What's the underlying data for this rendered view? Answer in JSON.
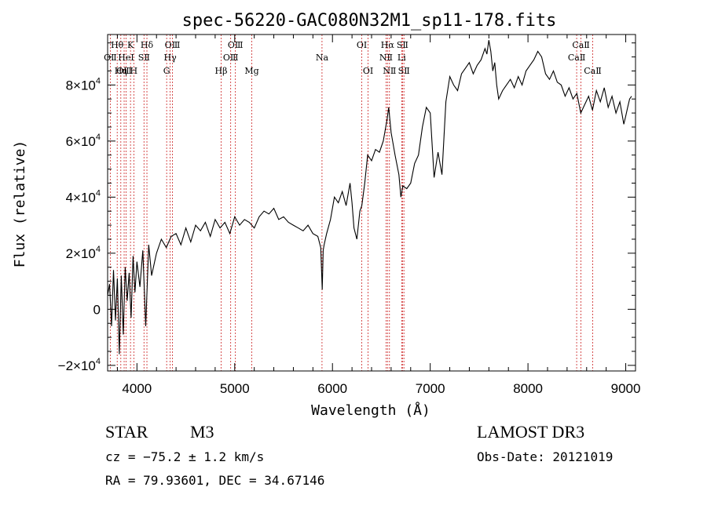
{
  "chart_data": {
    "type": "line",
    "title": "spec-56220-GAC080N32M1_sp11-178.fits",
    "xlabel": "Wavelength (Å)",
    "ylabel": "Flux (relative)",
    "xlim": [
      3700,
      9100
    ],
    "ylim": [
      -22000,
      98000
    ],
    "x_ticks": [
      {
        "value": 4000,
        "label": "4000"
      },
      {
        "value": 5000,
        "label": "5000"
      },
      {
        "value": 6000,
        "label": "6000"
      },
      {
        "value": 7000,
        "label": "7000"
      },
      {
        "value": 8000,
        "label": "8000"
      },
      {
        "value": 9000,
        "label": "9000"
      }
    ],
    "y_ticks": [
      {
        "value": -20000,
        "mant": "−2×10",
        "exp": "4"
      },
      {
        "value": 0,
        "mant": "0",
        "exp": ""
      },
      {
        "value": 20000,
        "mant": "2×10",
        "exp": "4"
      },
      {
        "value": 40000,
        "mant": "4×10",
        "exp": "4"
      },
      {
        "value": 60000,
        "mant": "6×10",
        "exp": "4"
      },
      {
        "value": 80000,
        "mant": "8×10",
        "exp": "4"
      }
    ],
    "series": [
      {
        "name": "flux",
        "x": [
          3700,
          3720,
          3740,
          3760,
          3780,
          3800,
          3820,
          3840,
          3860,
          3880,
          3900,
          3920,
          3940,
          3960,
          3980,
          4000,
          4030,
          4060,
          4090,
          4120,
          4150,
          4200,
          4250,
          4300,
          4350,
          4400,
          4450,
          4500,
          4550,
          4600,
          4650,
          4700,
          4750,
          4800,
          4850,
          4900,
          4950,
          5000,
          5050,
          5100,
          5150,
          5200,
          5250,
          5300,
          5350,
          5400,
          5450,
          5500,
          5550,
          5600,
          5650,
          5700,
          5750,
          5800,
          5850,
          5880,
          5895,
          5905,
          5915,
          5940,
          5980,
          6020,
          6060,
          6100,
          6140,
          6180,
          6200,
          6220,
          6250,
          6280,
          6300,
          6330,
          6360,
          6400,
          6440,
          6480,
          6520,
          6560,
          6575,
          6600,
          6640,
          6680,
          6700,
          6720,
          6760,
          6800,
          6840,
          6880,
          6920,
          6960,
          7000,
          7040,
          7080,
          7120,
          7160,
          7200,
          7240,
          7280,
          7320,
          7360,
          7400,
          7440,
          7480,
          7520,
          7560,
          7580,
          7600,
          7620,
          7640,
          7660,
          7680,
          7700,
          7740,
          7780,
          7820,
          7860,
          7900,
          7940,
          7980,
          8020,
          8060,
          8100,
          8140,
          8180,
          8220,
          8260,
          8300,
          8340,
          8380,
          8420,
          8460,
          8500,
          8540,
          8580,
          8620,
          8660,
          8700,
          8740,
          8780,
          8820,
          8860,
          8900,
          8940,
          8980,
          9000,
          9020,
          9040,
          9060
        ],
        "y": [
          5000,
          9000,
          -6000,
          14000,
          -4000,
          11000,
          -16000,
          12000,
          -9000,
          15000,
          3000,
          13000,
          -3000,
          19000,
          6000,
          17000,
          8000,
          21000,
          -6000,
          23000,
          12000,
          20000,
          25000,
          22000,
          26000,
          27000,
          23000,
          29000,
          24000,
          30000,
          28000,
          31000,
          26000,
          32000,
          29000,
          31000,
          27000,
          33000,
          30000,
          32000,
          31000,
          29000,
          33000,
          35000,
          34000,
          36000,
          32000,
          33000,
          31000,
          30000,
          29000,
          28000,
          30000,
          27000,
          26000,
          22000,
          7000,
          21000,
          23000,
          27000,
          32000,
          40000,
          38000,
          42000,
          37000,
          45000,
          38000,
          29000,
          25000,
          35000,
          37000,
          45000,
          55000,
          53000,
          57000,
          56000,
          60000,
          68000,
          72000,
          63000,
          55000,
          48000,
          40000,
          44000,
          43000,
          45000,
          52000,
          55000,
          65000,
          72000,
          70000,
          47000,
          56000,
          48000,
          74000,
          83000,
          80000,
          78000,
          84000,
          86000,
          88000,
          84000,
          87000,
          89000,
          93000,
          91000,
          96000,
          92000,
          85000,
          88000,
          80000,
          75000,
          78000,
          80000,
          82000,
          79000,
          83000,
          80000,
          85000,
          87000,
          89000,
          92000,
          90000,
          84000,
          82000,
          85000,
          81000,
          80000,
          76000,
          79000,
          75000,
          77000,
          70000,
          73000,
          76000,
          71000,
          78000,
          74000,
          79000,
          72000,
          76000,
          70000,
          74000,
          66000,
          69000,
          72000,
          75000,
          76000
        ]
      }
    ],
    "spectral_lines": [
      {
        "label": "OⅡ",
        "wavelength": 3727,
        "row": 2
      },
      {
        "label": "Hθ",
        "wavelength": 3798,
        "row": 1
      },
      {
        "label": "OⅢ",
        "wavelength": 3869,
        "row": 3
      },
      {
        "label": "HeⅠ",
        "wavelength": 3889,
        "row": 2
      },
      {
        "label": "Hη",
        "wavelength": 3835,
        "row": 3
      },
      {
        "label": "K",
        "wavelength": 3934,
        "row": 1
      },
      {
        "label": "H",
        "wavelength": 3968,
        "row": 3
      },
      {
        "label": "SⅡ",
        "wavelength": 4072,
        "row": 2
      },
      {
        "label": "Hδ",
        "wavelength": 4102,
        "row": 1
      },
      {
        "label": "G",
        "wavelength": 4304,
        "row": 3
      },
      {
        "label": "OⅢ",
        "wavelength": 4363,
        "row": 1
      },
      {
        "label": "Hγ",
        "wavelength": 4340,
        "row": 2
      },
      {
        "label": "Hβ",
        "wavelength": 4861,
        "row": 3
      },
      {
        "label": "OⅢ",
        "wavelength": 4959,
        "row": 2
      },
      {
        "label": "OⅢ",
        "wavelength": 5007,
        "row": 1
      },
      {
        "label": "Mg",
        "wavelength": 5175,
        "row": 3
      },
      {
        "label": "Na",
        "wavelength": 5893,
        "row": 2
      },
      {
        "label": "OⅠ",
        "wavelength": 6300,
        "row": 1
      },
      {
        "label": "OⅠ",
        "wavelength": 6364,
        "row": 3
      },
      {
        "label": "NⅡ",
        "wavelength": 6548,
        "row": 2
      },
      {
        "label": "Hα",
        "wavelength": 6563,
        "row": 1
      },
      {
        "label": "NⅡ",
        "wavelength": 6583,
        "row": 3
      },
      {
        "label": "SⅡ",
        "wavelength": 6716,
        "row": 1
      },
      {
        "label": "Li",
        "wavelength": 6708,
        "row": 2
      },
      {
        "label": "SⅡ",
        "wavelength": 6731,
        "row": 3
      },
      {
        "label": "CaⅡ",
        "wavelength": 8498,
        "row": 2
      },
      {
        "label": "CaⅡ",
        "wavelength": 8542,
        "row": 1
      },
      {
        "label": "CaⅡ",
        "wavelength": 8662,
        "row": 3
      }
    ]
  },
  "info": {
    "object_class": "STAR",
    "subclass": "M3",
    "survey": "LAMOST DR3",
    "redshift": "cz = −75.2 ± 1.2 km/s",
    "obs_date": "Obs-Date: 20121019",
    "coords": "RA =  79.93601, DEC =  34.67146"
  },
  "colors": {
    "line": "#000000",
    "axis": "#000000",
    "marker": "#cc2222",
    "background": "#ffffff"
  }
}
